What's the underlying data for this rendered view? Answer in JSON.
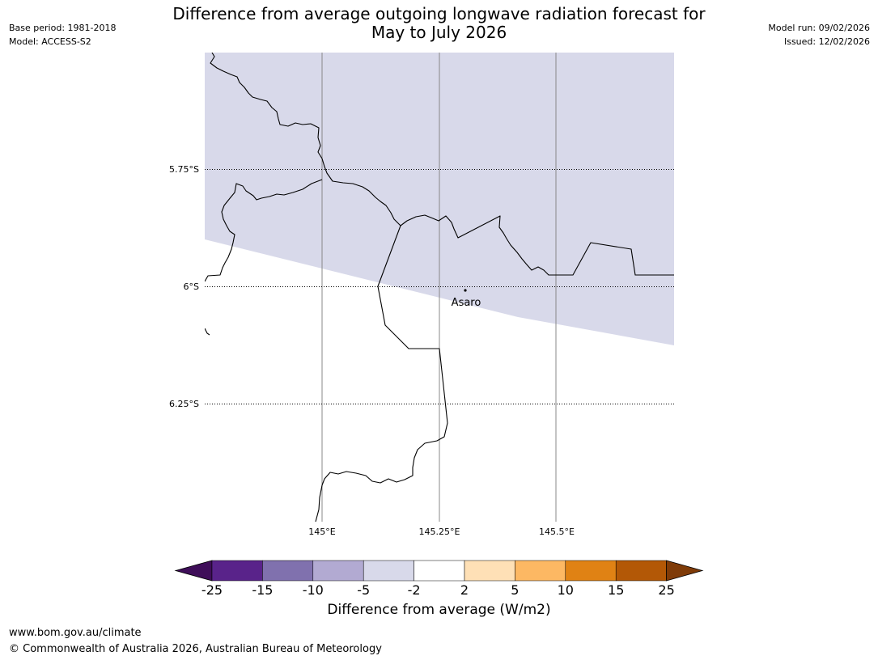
{
  "header": {
    "title_line1": "Difference from average outgoing longwave radiation forecast for",
    "title_line2": "May to July 2026",
    "base_period": "Base period: 1981-2018",
    "model": "Model: ACCESS-S2",
    "model_run": "Model run: 09/02/2026",
    "issued": "Issued: 12/02/2026"
  },
  "map": {
    "lat_labels": [
      "5.75°S",
      "6°S",
      "6.25°S"
    ],
    "lon_labels": [
      "145°E",
      "145.25°E",
      "145.5°E"
    ],
    "place": {
      "name": "Asaro",
      "lon": 145.3,
      "lat": -6.01
    },
    "anomaly_fill_color": "#d8d9ea",
    "anomaly_category": "-5 to -2"
  },
  "colorbar": {
    "title": "Difference from average (W/m2)",
    "ticks": [
      "-25",
      "-15",
      "-10",
      "-5",
      "-2",
      "2",
      "5",
      "10",
      "15",
      "25"
    ],
    "colors": [
      "#3f0e59",
      "#59238a",
      "#8071ae",
      "#b2aad2",
      "#d8d9ea",
      "#ffffff",
      "#fee0b6",
      "#fdb863",
      "#e08214",
      "#b35806",
      "#7f3b08"
    ]
  },
  "footer": {
    "url": "www.bom.gov.au/climate",
    "copyright": "© Commonwealth of Australia 2026, Australian Bureau of Meteorology"
  }
}
